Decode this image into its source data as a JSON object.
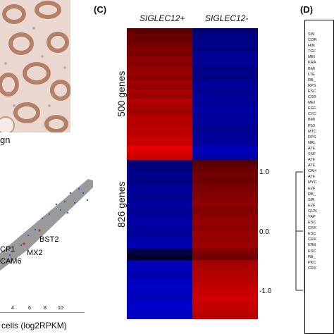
{
  "panel_b": {
    "caption": "gn",
    "scatter_labels": [
      "BST2",
      "MX2",
      "CP1",
      "CAM6"
    ],
    "xaxis_ticks": [
      "4",
      "6",
      "8",
      "10"
    ],
    "xaxis_label": "cells (log2RPKM)"
  },
  "panel_c": {
    "label": "(C)",
    "col_labels": [
      "SIGLEC12+",
      "SIGLEC12-"
    ],
    "row_labels": [
      "500 genes",
      "826 genes"
    ],
    "scale_ticks": [
      "1.0",
      "0.0",
      "-1.0"
    ],
    "colors": {
      "high": "#ff0000",
      "mid": "#000000",
      "low": "#0000ff"
    }
  },
  "panel_d": {
    "label": "(D)",
    "genes": [
      "SIN",
      "COR",
      "HIN",
      "TGF",
      "MEI",
      "KRA",
      "BMI",
      "LTE",
      "RB_",
      "RPS",
      "ESC",
      "CSR",
      "MEI",
      "EGF",
      "CYC",
      "BMI",
      "P53",
      "MTC",
      "RPS",
      "NRL",
      "ATF",
      "SNF",
      "ATF",
      "ATF",
      "CAH",
      "ATF",
      "MYC",
      "E2F",
      "RB_",
      "SIR",
      "E2F",
      "GCN",
      "YAP",
      "ESC",
      "CRX",
      "ESC",
      "CRX",
      "ERB",
      "ESC",
      "RB_",
      "PKC",
      "CRX"
    ]
  },
  "chart_data": {
    "type": "heatmap",
    "title": "",
    "columns": [
      "SIGLEC12+",
      "SIGLEC12-"
    ],
    "row_groups": [
      {
        "name": "500 genes",
        "pattern": "high in SIGLEC12+, low in SIGLEC12-"
      },
      {
        "name": "826 genes",
        "pattern": "low in SIGLEC12+, high in SIGLEC12-"
      }
    ],
    "scale": {
      "min": -1.0,
      "mid": 0.0,
      "max": 1.0
    },
    "values_group1": {
      "siglec_pos": [
        0.35,
        0.42,
        0.4,
        0.45,
        0.5,
        0.48,
        0.55,
        0.52,
        0.58,
        0.6,
        0.55,
        0.62,
        0.58,
        0.65,
        0.6,
        0.7,
        0.65,
        0.62,
        0.68,
        0.72,
        0.7,
        0.75,
        0.72,
        0.8,
        0.78,
        0.9,
        0.85,
        0.8
      ],
      "siglec_neg": [
        -0.45,
        -0.5,
        -0.52,
        -0.55,
        -0.5,
        -0.58,
        -0.55,
        -0.6,
        -0.5,
        -0.55,
        -0.52,
        -0.58,
        -0.6,
        -0.55,
        -0.62,
        -0.58,
        -0.6,
        -0.65,
        -0.58,
        -0.62,
        -0.6,
        -0.55,
        -0.62,
        -0.58,
        -0.6,
        -0.72,
        -0.7,
        -0.65
      ]
    },
    "values_group2": {
      "siglec_pos": [
        -0.45,
        -0.5,
        -0.55,
        -0.52,
        -0.58,
        -0.6,
        -0.55,
        -0.62,
        -0.58,
        -0.6,
        -0.65,
        -0.62,
        -0.6,
        -0.65,
        -0.7,
        -0.3,
        -0.15,
        -0.7,
        -0.72,
        -0.68,
        -0.75,
        -0.78,
        -0.72,
        -0.75,
        -0.8,
        -0.78,
        -0.75
      ],
      "siglec_neg": [
        0.35,
        0.4,
        0.45,
        0.42,
        0.48,
        0.5,
        0.52,
        0.55,
        0.5,
        0.55,
        0.58,
        0.55,
        0.6,
        0.58,
        0.62,
        0.5,
        0.45,
        0.65,
        0.68,
        0.7,
        0.72,
        0.75,
        0.78,
        0.8,
        0.78,
        0.75,
        0.72
      ]
    }
  }
}
